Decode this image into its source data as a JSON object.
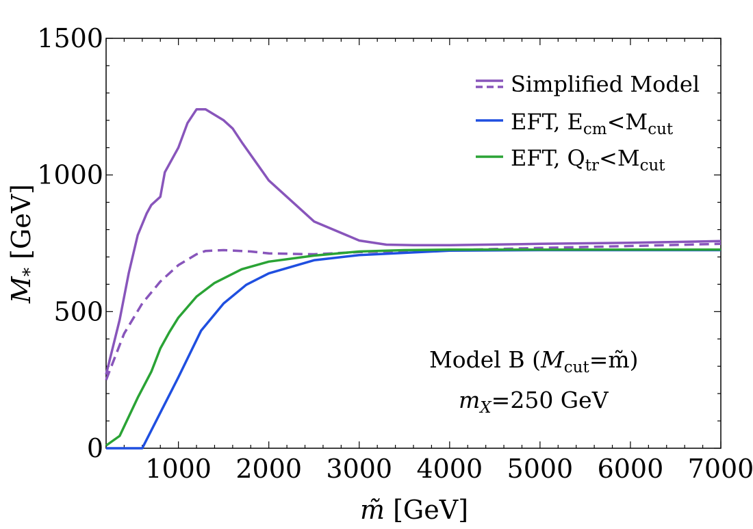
{
  "chart_data": {
    "type": "line",
    "title": "",
    "xlabel": "m̃ [GeV]",
    "ylabel": "M* [GeV]",
    "xlim": [
      200,
      7000
    ],
    "ylim": [
      0,
      1500
    ],
    "xticks": [
      1000,
      2000,
      3000,
      4000,
      5000,
      6000,
      7000
    ],
    "yticks": [
      0,
      500,
      1000,
      1500
    ],
    "grid": false,
    "legend_position": "top-right",
    "series": [
      {
        "name": "Simplified Model",
        "style": "solid",
        "color": "#8855bb",
        "x": [
          200,
          350,
          450,
          550,
          650,
          700,
          800,
          850,
          950,
          1000,
          1100,
          1200,
          1300,
          1400,
          1500,
          1600,
          1700,
          2000,
          2500,
          3000,
          3300,
          3600,
          4000,
          5000,
          6000,
          7000
        ],
        "y": [
          270,
          470,
          640,
          780,
          860,
          890,
          920,
          1010,
          1070,
          1100,
          1190,
          1240,
          1240,
          1220,
          1200,
          1170,
          1120,
          980,
          830,
          760,
          745,
          743,
          743,
          748,
          752,
          758
        ]
      },
      {
        "name": "Simplified Model (dashed)",
        "style": "dashed",
        "color": "#8855bb",
        "x": [
          200,
          400,
          600,
          800,
          1000,
          1200,
          1300,
          1500,
          1800,
          2000,
          2500,
          3000,
          4000,
          5000,
          6000,
          7000
        ],
        "y": [
          250,
          420,
          530,
          610,
          670,
          710,
          722,
          725,
          720,
          713,
          710,
          718,
          725,
          733,
          740,
          748
        ]
      },
      {
        "name": "EFT, E_cm<M_cut",
        "style": "solid",
        "color": "#1f4fe0",
        "x": [
          200,
          600,
          800,
          1000,
          1250,
          1500,
          1750,
          2000,
          2500,
          3000,
          3500,
          4000,
          5000,
          6000,
          7000
        ],
        "y": [
          0,
          0,
          130,
          260,
          430,
          530,
          598,
          640,
          688,
          707,
          715,
          723,
          725,
          725,
          725
        ]
      },
      {
        "name": "EFT, Q_tr<M_cut",
        "style": "solid",
        "color": "#2aa335",
        "x": [
          200,
          350,
          550,
          700,
          800,
          900,
          1000,
          1200,
          1400,
          1700,
          2000,
          2500,
          3000,
          3500,
          4000,
          5000,
          6000,
          7000
        ],
        "y": [
          10,
          45,
          185,
          280,
          365,
          425,
          478,
          555,
          605,
          655,
          683,
          705,
          720,
          725,
          727,
          727,
          727,
          727
        ]
      }
    ],
    "legend": [
      {
        "label": "Simplified Model",
        "color": "#8855bb",
        "style": "solid+dashed"
      },
      {
        "label_main": "EFT, E",
        "label_sub": "cm",
        "label_rel": "<M",
        "label_sub2": "cut",
        "color": "#1f4fe0",
        "style": "solid"
      },
      {
        "label_main": "EFT, Q",
        "label_sub": "tr",
        "label_rel": "<M",
        "label_sub2": "cut",
        "color": "#2aa335",
        "style": "solid"
      }
    ],
    "annotations": {
      "model_line": "Model B (",
      "model_m": "M",
      "model_sub": "cut",
      "model_eq": "=m̃)",
      "mass_m": "m",
      "mass_sub": "X",
      "mass_value": "=250 GeV"
    },
    "axis_text": {
      "x_title_symbol": "m̃",
      "x_title_unit": " [GeV]",
      "y_title_symbol": "M",
      "y_title_sub": "*",
      "y_title_unit": " [GeV]"
    }
  }
}
